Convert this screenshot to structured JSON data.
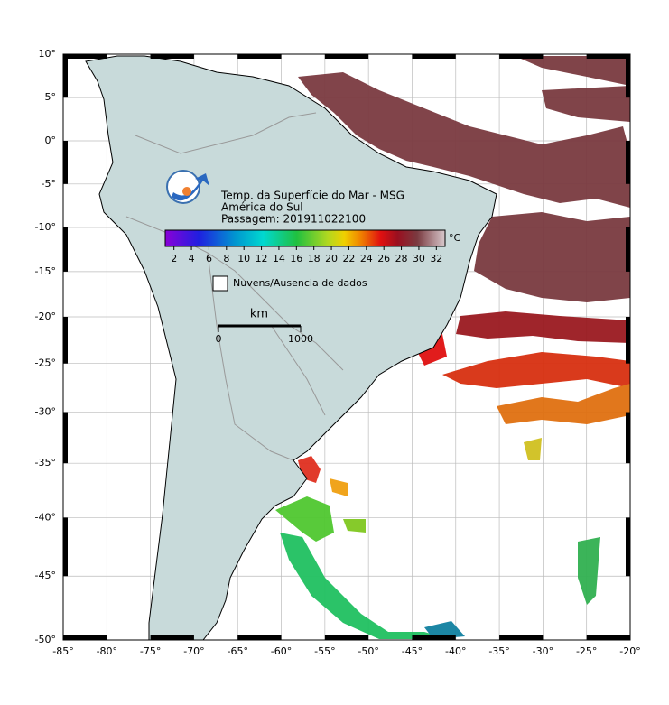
{
  "map": {
    "title_lines": [
      "Temp. da Superfície do Mar - MSG",
      "América do Sul",
      "Passagem: 201911022100"
    ],
    "lat_lim": [
      -50,
      10
    ],
    "lon_lim": [
      -85,
      -20
    ],
    "lat_ticks": [
      {
        "value": 10,
        "label": "10°"
      },
      {
        "value": 5,
        "label": "5°"
      },
      {
        "value": 0,
        "label": "0°"
      },
      {
        "value": -5,
        "label": "-5°"
      },
      {
        "value": -10,
        "label": "-10°"
      },
      {
        "value": -15,
        "label": "-15°"
      },
      {
        "value": -20,
        "label": "-20°"
      },
      {
        "value": -25,
        "label": "-25°"
      },
      {
        "value": -30,
        "label": "-30°"
      },
      {
        "value": -35,
        "label": "-35°"
      },
      {
        "value": -40,
        "label": "-40°"
      },
      {
        "value": -45,
        "label": "-45°"
      },
      {
        "value": -50,
        "label": "-50°"
      }
    ],
    "lon_ticks": [
      {
        "value": -85,
        "label": "-85°"
      },
      {
        "value": -80,
        "label": "-80°"
      },
      {
        "value": -75,
        "label": "-75°"
      },
      {
        "value": -70,
        "label": "-70°"
      },
      {
        "value": -65,
        "label": "-65°"
      },
      {
        "value": -60,
        "label": "-60°"
      },
      {
        "value": -55,
        "label": "-55°"
      },
      {
        "value": -50,
        "label": "-50°"
      },
      {
        "value": -45,
        "label": "-45°"
      },
      {
        "value": -40,
        "label": "-40°"
      },
      {
        "value": -35,
        "label": "-35°"
      },
      {
        "value": -30,
        "label": "-30°"
      },
      {
        "value": -25,
        "label": "-25°"
      },
      {
        "value": -20,
        "label": "-20°"
      }
    ],
    "colorbar": {
      "lim": [
        1,
        33
      ],
      "ticks": [
        2,
        4,
        6,
        8,
        10,
        12,
        14,
        16,
        18,
        20,
        22,
        24,
        26,
        28,
        30,
        32
      ],
      "unit": "°C"
    },
    "legend": "Nuvens/Ausencia de dados",
    "scale_bar": {
      "unit": "km",
      "ticks": [
        0,
        1000
      ]
    }
  }
}
